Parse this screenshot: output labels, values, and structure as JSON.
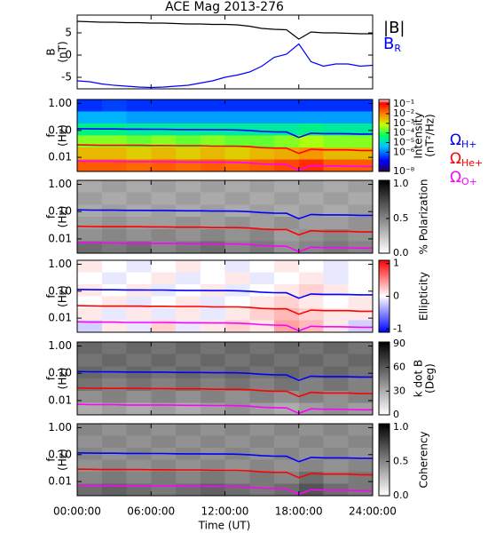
{
  "time_axis": {
    "label": "Time (UT)",
    "xlim": [
      0,
      24
    ],
    "xticks": [
      {
        "value": 0,
        "label": "00:00:00"
      },
      {
        "value": 6,
        "label": "06:00:00"
      },
      {
        "value": 12,
        "label": "12:00:00"
      },
      {
        "value": 18,
        "label": "18:00:00"
      },
      {
        "value": 24,
        "label": "24:00:00"
      }
    ]
  },
  "overlay": {
    "x": [
      0,
      1,
      2,
      3,
      4,
      5,
      6,
      7,
      8,
      9,
      10,
      11,
      12,
      13,
      14,
      15,
      16,
      17,
      18,
      19,
      20,
      21,
      22,
      23,
      24
    ],
    "series": [
      {
        "name": "Ω",
        "subscript": "H+",
        "color": "#0000ff",
        "values": [
          0.116,
          0.114,
          0.113,
          0.113,
          0.111,
          0.111,
          0.11,
          0.11,
          0.108,
          0.107,
          0.107,
          0.105,
          0.105,
          0.104,
          0.099,
          0.092,
          0.088,
          0.087,
          0.055,
          0.079,
          0.076,
          0.076,
          0.075,
          0.073,
          0.073
        ]
      },
      {
        "name": "Ω",
        "subscript": "He+",
        "color": "#ff0000",
        "values": [
          0.029,
          0.0285,
          0.028,
          0.028,
          0.028,
          0.028,
          0.0275,
          0.0275,
          0.027,
          0.027,
          0.027,
          0.026,
          0.026,
          0.026,
          0.025,
          0.023,
          0.022,
          0.022,
          0.014,
          0.02,
          0.019,
          0.019,
          0.019,
          0.018,
          0.018
        ]
      },
      {
        "name": "Ω",
        "subscript": "O+",
        "color": "#ff00ff",
        "values": [
          0.0073,
          0.0071,
          0.0071,
          0.0071,
          0.0069,
          0.0069,
          0.0069,
          0.0069,
          0.0068,
          0.0067,
          0.0067,
          0.0066,
          0.0066,
          0.0065,
          0.0062,
          0.0057,
          0.0055,
          0.0054,
          0.0034,
          0.005,
          0.0048,
          0.0048,
          0.0047,
          0.0046,
          0.0046
        ]
      }
    ]
  },
  "chart_data": [
    {
      "type": "line",
      "title": "ACE Mag 2013-276",
      "ylabel": [
        "B",
        "(nT)"
      ],
      "xlim": [
        0,
        24
      ],
      "ylim": [
        -7.6,
        9
      ],
      "yticks": [
        5,
        0,
        -5
      ],
      "x": [
        0,
        1,
        2,
        3,
        4,
        5,
        6,
        7,
        8,
        9,
        10,
        11,
        12,
        13,
        14,
        15,
        16,
        17,
        18,
        19,
        20,
        21,
        22,
        23,
        24
      ],
      "series": [
        {
          "name": "|B|",
          "color": "#000000",
          "values": [
            7.6,
            7.5,
            7.4,
            7.4,
            7.3,
            7.3,
            7.2,
            7.2,
            7.1,
            7.0,
            7.0,
            6.9,
            6.9,
            6.8,
            6.5,
            6.0,
            5.8,
            5.7,
            3.6,
            5.2,
            5.0,
            5.0,
            4.9,
            4.8,
            4.8
          ]
        },
        {
          "name": "B",
          "subscript": "R",
          "color": "#0000ff",
          "values": [
            -5.8,
            -6.0,
            -6.5,
            -6.8,
            -7.0,
            -7.2,
            -7.3,
            -7.2,
            -7.0,
            -6.8,
            -6.3,
            -5.8,
            -5.0,
            -4.5,
            -3.8,
            -2.5,
            -0.5,
            0.2,
            2.5,
            -1.5,
            -2.5,
            -2.0,
            -2.0,
            -2.5,
            -2.3
          ]
        }
      ]
    },
    {
      "type": "heatmap",
      "ylabel": [
        "f",
        "(Hz)"
      ],
      "ylog": true,
      "xlim": [
        0,
        24
      ],
      "ylim": [
        0.003,
        1.4
      ],
      "yticks": [
        {
          "value": 1,
          "label": "1.00"
        },
        {
          "value": 0.1,
          "label": "0.10"
        },
        0.01
      ],
      "x_bins": [
        0,
        2,
        4,
        6,
        8,
        10,
        12,
        14,
        16,
        18,
        20,
        22,
        24
      ],
      "y_bins": [
        0.003,
        0.0084,
        0.023,
        0.065,
        0.18,
        0.5,
        1.4
      ],
      "colormap": "rainbow",
      "zlog": true,
      "zlabel": [
        "Intensity",
        "(nT²/Hz)"
      ],
      "zlim": [
        1e-08,
        0.3
      ],
      "zticks": [
        {
          "value": 0.1,
          "label": "10⁻¹"
        },
        {
          "value": 0.01,
          "label": "10⁻²"
        },
        {
          "value": 0.001,
          "label": "10⁻³"
        },
        {
          "value": 0.0001,
          "label": "10⁻⁴"
        },
        {
          "value": 1e-05,
          "label": "10⁻⁵"
        },
        {
          "value": 1e-06,
          "label": "10⁻⁶"
        },
        {
          "value": 1e-08,
          "label": "10⁻⁸"
        }
      ],
      "z": [
        [
          0.02,
          0.02,
          0.015,
          0.02,
          0.015,
          0.02,
          0.015,
          0.02,
          0.03,
          0.05,
          0.02,
          0.02
        ],
        [
          0.003,
          0.003,
          0.002,
          0.003,
          0.002,
          0.003,
          0.002,
          0.003,
          0.004,
          0.006,
          0.003,
          0.003
        ],
        [
          0.0003,
          0.0003,
          0.0002,
          0.0003,
          0.0002,
          0.0003,
          0.0002,
          0.0002,
          0.0003,
          0.0005,
          0.0003,
          0.0003
        ],
        [
          3e-05,
          3e-05,
          2e-05,
          2e-05,
          2e-05,
          2e-05,
          2e-05,
          2e-05,
          2e-05,
          3e-05,
          2e-05,
          2e-05
        ],
        [
          3e-06,
          3e-06,
          2e-06,
          2e-06,
          2e-06,
          2e-06,
          2e-06,
          2e-06,
          2e-06,
          2e-06,
          2e-06,
          2e-06
        ],
        [
          3e-07,
          4e-07,
          3e-07,
          3e-07,
          3e-07,
          3e-07,
          3e-07,
          3e-07,
          3e-07,
          3e-07,
          3e-07,
          3e-07
        ]
      ]
    },
    {
      "type": "heatmap",
      "ylabel": [
        "f",
        "(Hz)"
      ],
      "ylog": true,
      "xlim": [
        0,
        24
      ],
      "ylim": [
        0.003,
        1.4
      ],
      "yticks": [
        {
          "value": 1,
          "label": "1.00"
        },
        {
          "value": 0.1,
          "label": "0.10"
        },
        0.01
      ],
      "x_bins": [
        0,
        2,
        4,
        6,
        8,
        10,
        12,
        14,
        16,
        18,
        20,
        22,
        24
      ],
      "y_bins": [
        0.003,
        0.0084,
        0.023,
        0.065,
        0.18,
        0.5,
        1.4
      ],
      "colormap": "gray",
      "zlabel": [
        "% Polarization"
      ],
      "zlim": [
        0,
        1.05
      ],
      "zticks": [
        {
          "value": 0,
          "label": "0.0"
        },
        {
          "value": 0.5,
          "label": "0.5"
        },
        {
          "value": 1,
          "label": "1.0"
        }
      ],
      "z": [
        [
          0.6,
          0.55,
          0.6,
          0.5,
          0.55,
          0.6,
          0.5,
          0.55,
          0.45,
          0.5,
          0.55,
          0.5
        ],
        [
          0.45,
          0.5,
          0.45,
          0.5,
          0.45,
          0.5,
          0.45,
          0.5,
          0.4,
          0.45,
          0.5,
          0.45
        ],
        [
          0.4,
          0.45,
          0.4,
          0.4,
          0.45,
          0.4,
          0.45,
          0.4,
          0.45,
          0.4,
          0.4,
          0.45
        ],
        [
          0.35,
          0.4,
          0.35,
          0.4,
          0.35,
          0.4,
          0.35,
          0.4,
          0.35,
          0.4,
          0.35,
          0.4
        ],
        [
          0.4,
          0.35,
          0.4,
          0.35,
          0.4,
          0.35,
          0.4,
          0.35,
          0.4,
          0.35,
          0.4,
          0.35
        ],
        [
          0.35,
          0.4,
          0.35,
          0.4,
          0.35,
          0.4,
          0.35,
          0.4,
          0.35,
          0.4,
          0.35,
          0.4
        ]
      ]
    },
    {
      "type": "heatmap",
      "ylabel": [
        "f",
        "(Hz)"
      ],
      "ylog": true,
      "xlim": [
        0,
        24
      ],
      "ylim": [
        0.003,
        1.4
      ],
      "yticks": [
        {
          "value": 1,
          "label": "1.00"
        },
        {
          "value": 0.1,
          "label": "0.10"
        },
        0.01
      ],
      "x_bins": [
        0,
        2,
        4,
        6,
        8,
        10,
        12,
        14,
        16,
        18,
        20,
        22,
        24
      ],
      "y_bins": [
        0.003,
        0.0084,
        0.023,
        0.065,
        0.18,
        0.5,
        1.4
      ],
      "colormap": "blue-white-red",
      "zlabel": [
        "Ellipticity"
      ],
      "zlim": [
        -1.1,
        1.1
      ],
      "zticks": [
        1,
        0,
        -1
      ],
      "z": [
        [
          -0.2,
          0.1,
          -0.1,
          0.2,
          -0.1,
          0.1,
          0.2,
          0.1,
          0.4,
          0.3,
          0.1,
          -0.2
        ],
        [
          0.1,
          -0.1,
          0.1,
          -0.1,
          0.1,
          -0.1,
          0.1,
          0.2,
          0.3,
          0.2,
          0.1,
          0.1
        ],
        [
          0.0,
          0.1,
          -0.1,
          0.0,
          0.1,
          -0.1,
          0.0,
          0.1,
          0.2,
          0.1,
          0.0,
          0.1
        ],
        [
          0.1,
          0.0,
          0.1,
          -0.1,
          0.0,
          0.1,
          -0.1,
          0.0,
          0.1,
          0.2,
          0.1,
          0.0
        ],
        [
          0.0,
          -0.1,
          0.0,
          0.1,
          -0.1,
          0.0,
          0.1,
          -0.1,
          0.0,
          0.1,
          -0.1,
          0.0
        ],
        [
          0.1,
          0.0,
          -0.1,
          0.0,
          0.1,
          0.0,
          -0.1,
          0.0,
          0.1,
          0.0,
          -0.1,
          0.0
        ]
      ]
    },
    {
      "type": "heatmap",
      "ylabel": [
        "f",
        "(Hz)"
      ],
      "ylog": true,
      "xlim": [
        0,
        24
      ],
      "ylim": [
        0.003,
        1.4
      ],
      "yticks": [
        {
          "value": 1,
          "label": "1.00"
        },
        {
          "value": 0.1,
          "label": "0.10"
        },
        0.01
      ],
      "x_bins": [
        0,
        2,
        4,
        6,
        8,
        10,
        12,
        14,
        16,
        18,
        20,
        22,
        24
      ],
      "y_bins": [
        0.003,
        0.0084,
        0.023,
        0.065,
        0.18,
        0.5,
        1.4
      ],
      "colormap": "gray",
      "zlabel": [
        "k dot B",
        "(Deg)"
      ],
      "zlim": [
        0,
        92
      ],
      "zticks": [
        90,
        60,
        30,
        0
      ],
      "z": [
        [
          30,
          35,
          30,
          35,
          30,
          35,
          40,
          35,
          30,
          35,
          40,
          35
        ],
        [
          40,
          45,
          40,
          45,
          40,
          45,
          40,
          45,
          40,
          45,
          40,
          45
        ],
        [
          50,
          45,
          50,
          45,
          50,
          45,
          50,
          45,
          50,
          45,
          50,
          45
        ],
        [
          55,
          50,
          55,
          50,
          55,
          50,
          55,
          50,
          55,
          50,
          55,
          50
        ],
        [
          50,
          55,
          50,
          55,
          50,
          55,
          50,
          55,
          50,
          55,
          50,
          55
        ],
        [
          55,
          50,
          55,
          50,
          55,
          50,
          55,
          50,
          55,
          50,
          55,
          50
        ]
      ]
    },
    {
      "type": "heatmap",
      "ylabel": [
        "f",
        "(Hz)"
      ],
      "ylog": true,
      "xlim": [
        0,
        24
      ],
      "ylim": [
        0.003,
        1.4
      ],
      "yticks": [
        {
          "value": 1,
          "label": "1.00"
        },
        {
          "value": 0.1,
          "label": "0.10"
        },
        0.01
      ],
      "x_bins": [
        0,
        2,
        4,
        6,
        8,
        10,
        12,
        14,
        16,
        18,
        20,
        22,
        24
      ],
      "y_bins": [
        0.003,
        0.0084,
        0.023,
        0.065,
        0.18,
        0.5,
        1.4
      ],
      "colormap": "gray",
      "zlabel": [
        "Coherency"
      ],
      "zlim": [
        0,
        1.05
      ],
      "zticks": [
        {
          "value": 0,
          "label": "0.0"
        },
        {
          "value": 0.5,
          "label": "0.5"
        },
        {
          "value": 1,
          "label": "1.0"
        }
      ],
      "z": [
        [
          0.6,
          0.65,
          0.6,
          0.55,
          0.6,
          0.65,
          0.6,
          0.55,
          0.6,
          0.7,
          0.6,
          0.55
        ],
        [
          0.5,
          0.55,
          0.5,
          0.55,
          0.5,
          0.55,
          0.5,
          0.55,
          0.5,
          0.6,
          0.5,
          0.55
        ],
        [
          0.45,
          0.5,
          0.45,
          0.5,
          0.45,
          0.5,
          0.45,
          0.5,
          0.45,
          0.5,
          0.45,
          0.5
        ],
        [
          0.5,
          0.45,
          0.5,
          0.45,
          0.5,
          0.45,
          0.5,
          0.45,
          0.5,
          0.45,
          0.5,
          0.45
        ],
        [
          0.45,
          0.5,
          0.45,
          0.5,
          0.45,
          0.5,
          0.45,
          0.5,
          0.45,
          0.5,
          0.45,
          0.5
        ],
        [
          0.5,
          0.45,
          0.5,
          0.45,
          0.5,
          0.45,
          0.5,
          0.45,
          0.5,
          0.45,
          0.5,
          0.45
        ]
      ]
    }
  ]
}
